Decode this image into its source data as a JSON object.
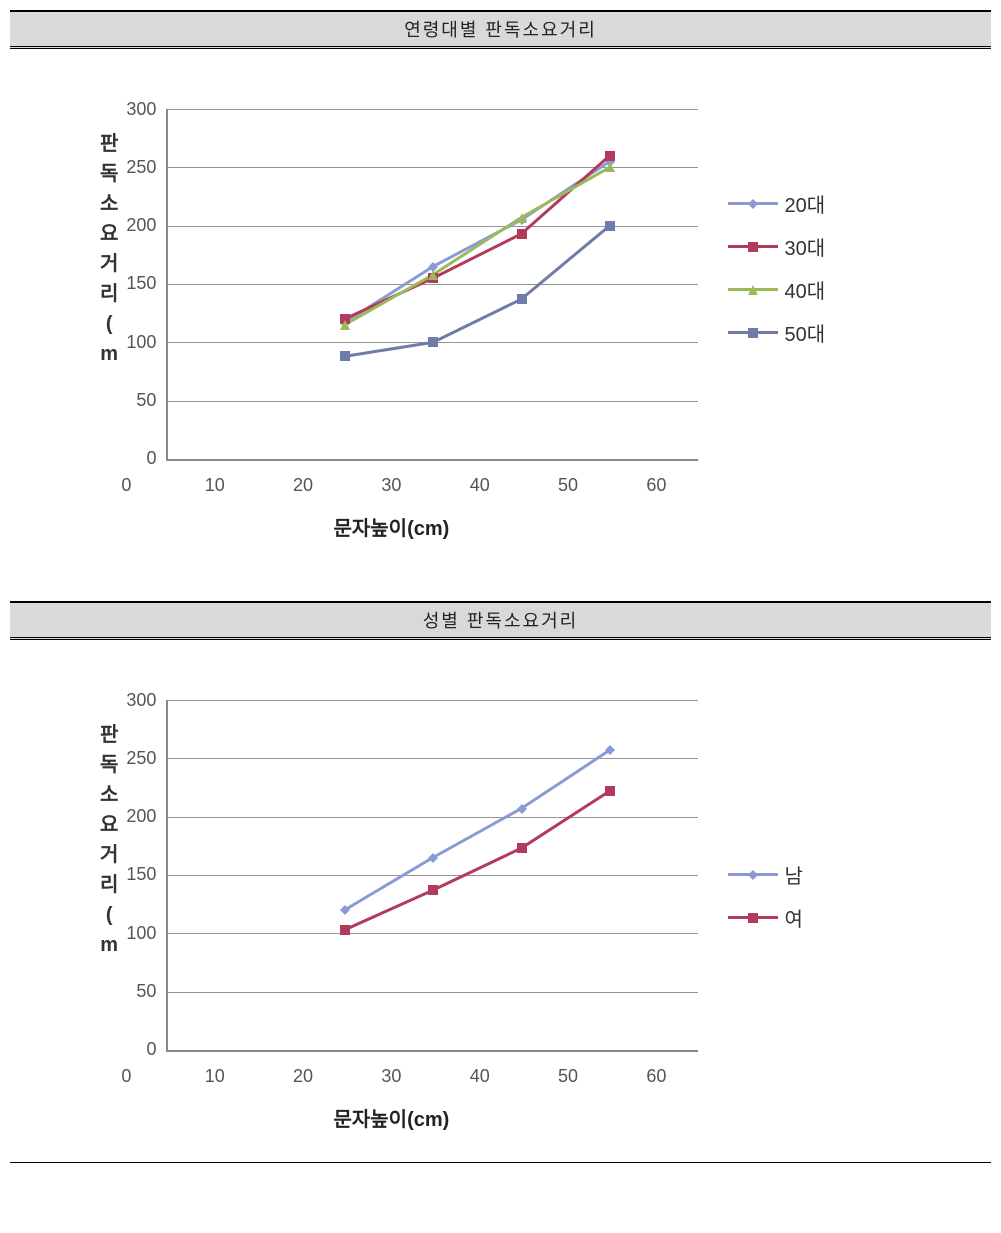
{
  "charts": [
    {
      "title": "연령대별 판독소요거리",
      "type": "line",
      "background_color": "#ffffff",
      "grid_color": "#888888",
      "axis_color": "#888888",
      "line_width": 3,
      "marker_size": 10,
      "xlabel": "문자높이(cm)",
      "ylabel_chars": [
        "판",
        "독",
        "소",
        "요",
        "거",
        "리",
        "(",
        "m"
      ],
      "xlim": [
        0,
        60
      ],
      "ylim": [
        0,
        300
      ],
      "xtick_step": 10,
      "ytick_step": 50,
      "xticks": [
        "0",
        "10",
        "20",
        "30",
        "40",
        "50",
        "60"
      ],
      "yticks": [
        "300",
        "250",
        "200",
        "150",
        "100",
        "50",
        "0"
      ],
      "x_values": [
        20,
        30,
        40,
        50
      ],
      "legend_top_offset": 80,
      "series": [
        {
          "label": "20대",
          "color": "#8a9bd4",
          "marker": "diamond",
          "y": [
            117,
            165,
            205,
            255
          ]
        },
        {
          "label": "30대",
          "color": "#b23a5b",
          "marker": "square",
          "y": [
            120,
            155,
            193,
            260
          ]
        },
        {
          "label": "40대",
          "color": "#9bbb59",
          "marker": "triangle",
          "y": [
            115,
            158,
            207,
            250
          ]
        },
        {
          "label": "50대",
          "color": "#6f7ba8",
          "marker": "square",
          "y": [
            88,
            100,
            137,
            200
          ]
        }
      ]
    },
    {
      "title": "성별 판독소요거리",
      "type": "line",
      "background_color": "#ffffff",
      "grid_color": "#888888",
      "axis_color": "#888888",
      "line_width": 3,
      "marker_size": 10,
      "xlabel": "문자높이(cm)",
      "ylabel_chars": [
        "판",
        "독",
        "소",
        "요",
        "거",
        "리",
        "(",
        "m"
      ],
      "xlim": [
        0,
        60
      ],
      "ylim": [
        0,
        300
      ],
      "xtick_step": 10,
      "ytick_step": 50,
      "xticks": [
        "0",
        "10",
        "20",
        "30",
        "40",
        "50",
        "60"
      ],
      "yticks": [
        "300",
        "250",
        "200",
        "150",
        "100",
        "50",
        "0"
      ],
      "x_values": [
        20,
        30,
        40,
        50
      ],
      "legend_top_offset": 160,
      "series": [
        {
          "label": "남",
          "color": "#8a9bd4",
          "marker": "diamond",
          "y": [
            120,
            165,
            207,
            257
          ]
        },
        {
          "label": "여",
          "color": "#b23a5b",
          "marker": "square",
          "y": [
            103,
            137,
            173,
            222
          ]
        }
      ]
    }
  ]
}
